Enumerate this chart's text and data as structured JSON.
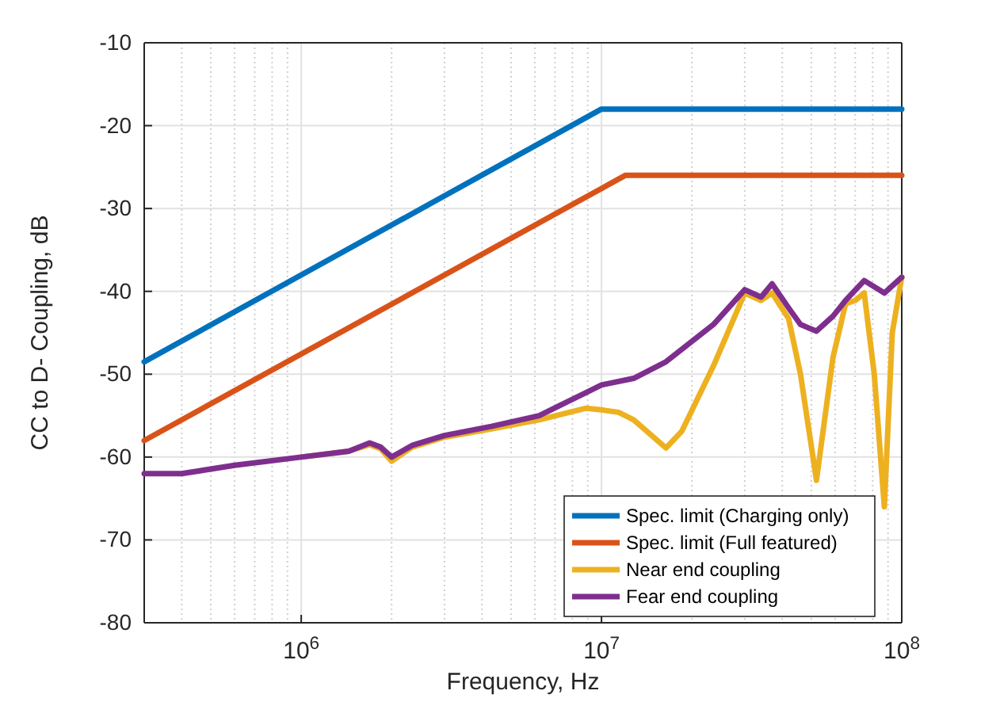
{
  "chart_data": {
    "type": "line",
    "xlabel": "Frequency, Hz",
    "ylabel": "CC to D- Coupling, dB",
    "log": "x",
    "grid": true,
    "legend": "bottom right",
    "line_style": "solid",
    "marker": "none",
    "xlim": [
      300000,
      100000000
    ],
    "xticks": [
      {
        "value": 1000000,
        "label": "10$^{6}$"
      },
      {
        "value": 10000000,
        "label": "10$^{7}$"
      },
      {
        "value": 100000000,
        "label": "10$^{8}$"
      }
    ],
    "ylim": [
      -80,
      -10
    ],
    "yticks": [
      -80,
      -70,
      -60,
      -50,
      -40,
      -30,
      -20,
      -10
    ],
    "series": [
      {
        "name": "Spec. limit (Charging only)",
        "color": "#0072bd",
        "x": [
          300000,
          10000000,
          100000000
        ],
        "values": [
          -48.5,
          -18,
          -18
        ]
      },
      {
        "name": "Spec. limit (Full featured)",
        "color": "#d95319",
        "x": [
          300000,
          12000000,
          100000000
        ],
        "values": [
          -58,
          -26,
          -26
        ]
      },
      {
        "name": "Near end coupling",
        "color": "#edb120",
        "x": [
          1000000,
          1440000,
          1690000,
          1840000,
          2000000,
          2340000,
          3000000,
          4300000,
          6200000,
          8900000,
          10000000,
          11400000,
          12800000,
          16400000,
          18500000,
          23600000,
          30000000,
          34000000,
          37000000,
          42000000,
          46000000,
          52000000,
          59000000,
          65000000,
          70000000,
          75000000,
          81000000,
          87500000,
          93000000,
          100000000
        ],
        "values": [
          -60,
          -59.3,
          -58.5,
          -59,
          -60.5,
          -58.8,
          -57.6,
          -56.6,
          -55.5,
          -54.1,
          -54.3,
          -54.6,
          -55.5,
          -58.9,
          -56.9,
          -49,
          -40.2,
          -41.1,
          -40.2,
          -43.3,
          -50,
          -62.8,
          -48,
          -41.5,
          -41.1,
          -40.2,
          -50,
          -66,
          -45,
          -38.3
        ]
      },
      {
        "name": "Fear end coupling",
        "color": "#7e2f8e",
        "x": [
          300000,
          400000,
          600000,
          1000000,
          1440000,
          1690000,
          1840000,
          2000000,
          2340000,
          3000000,
          4300000,
          6200000,
          8900000,
          10000000,
          12800000,
          16400000,
          23600000,
          30000000,
          34000000,
          37000000,
          42000000,
          46000000,
          52000000,
          59000000,
          65000000,
          75000000,
          87500000,
          100000000
        ],
        "values": [
          -62,
          -62,
          -61,
          -60,
          -59.3,
          -58.3,
          -58.8,
          -60,
          -58.6,
          -57.4,
          -56.3,
          -55,
          -52.2,
          -51.3,
          -50.5,
          -48.5,
          -44,
          -39.8,
          -40.7,
          -39.1,
          -42,
          -44,
          -44.8,
          -43,
          -41.1,
          -38.7,
          -40.2,
          -38.3
        ]
      }
    ]
  }
}
